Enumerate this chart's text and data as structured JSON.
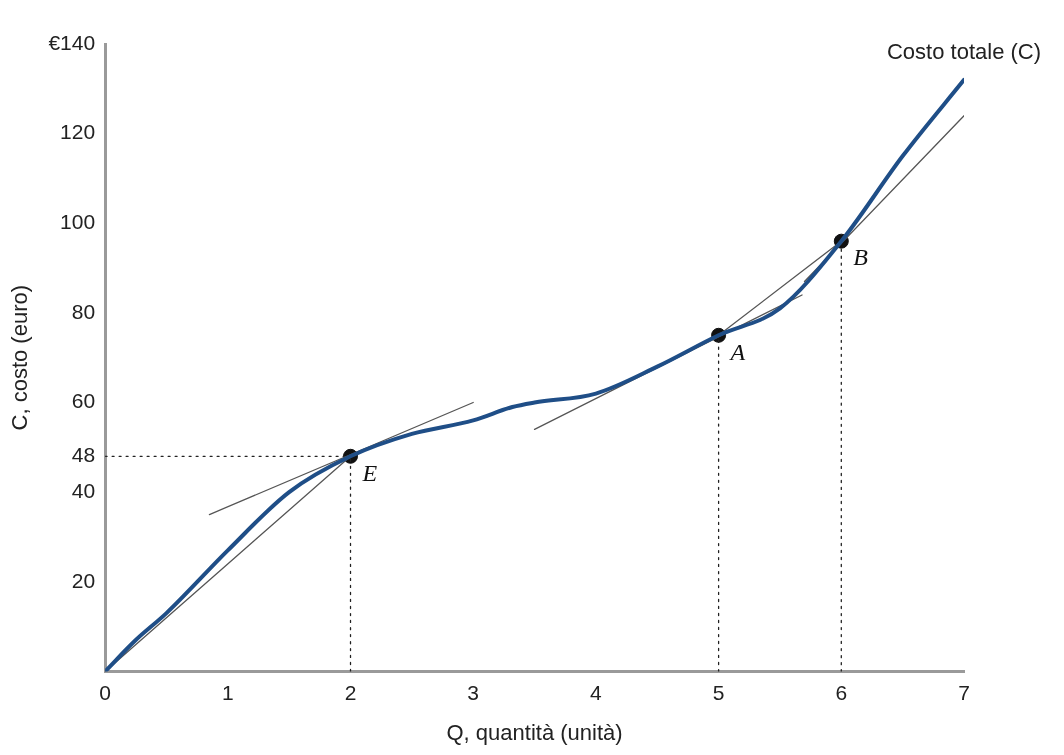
{
  "chart_data": {
    "type": "line",
    "xlabel": "Q, quantità (unità)",
    "ylabel": "C, costo (euro)",
    "xlim": [
      0,
      7
    ],
    "xticks": [
      0,
      1,
      2,
      3,
      4,
      5,
      6,
      7
    ],
    "ylim": [
      0,
      140
    ],
    "yticks": [
      20,
      40,
      48,
      60,
      80,
      100,
      120,
      {
        "value": 140,
        "label": "€140"
      }
    ],
    "grid": false,
    "legend": false,
    "series": [
      {
        "name": "Costo totale (C)",
        "type": "line",
        "color": "#1f4e87",
        "x": [
          0,
          0.25,
          0.5,
          1,
          1.5,
          2,
          2.5,
          3,
          3.32,
          3.5,
          4,
          4.5,
          5,
          5.5,
          6,
          6.5,
          7
        ],
        "values": [
          0,
          7,
          13,
          27,
          40,
          48,
          53,
          56,
          59,
          60,
          62,
          68,
          75,
          81,
          96,
          115,
          132
        ]
      },
      {
        "type": "line",
        "color": "#555555",
        "x": [
          0,
          2
        ],
        "values": [
          0,
          48
        ]
      },
      {
        "type": "line",
        "color": "#555555",
        "x": [
          0.85,
          3
        ],
        "values": [
          35,
          60
        ]
      },
      {
        "type": "line",
        "color": "#555555",
        "x": [
          3.5,
          5.68
        ],
        "values": [
          54,
          84
        ]
      },
      {
        "type": "line",
        "color": "#555555",
        "x": [
          5,
          6
        ],
        "values": [
          75,
          96
        ]
      },
      {
        "type": "line",
        "color": "#555555",
        "x": [
          5.7,
          7
        ],
        "values": [
          87,
          124
        ]
      },
      {
        "type": "line",
        "color": "#222222",
        "line_style": "dotted",
        "x": [
          0,
          2
        ],
        "values": [
          48,
          48
        ]
      },
      {
        "type": "line",
        "color": "#222222",
        "line_style": "dotted",
        "x": [
          2,
          2
        ],
        "values": [
          0,
          48
        ]
      },
      {
        "type": "line",
        "color": "#222222",
        "line_style": "dotted",
        "x": [
          5,
          5
        ],
        "values": [
          0,
          75
        ]
      },
      {
        "type": "line",
        "color": "#222222",
        "line_style": "dotted",
        "x": [
          6,
          6
        ],
        "values": [
          0,
          96
        ]
      },
      {
        "type": "scatter",
        "color": "#111111",
        "marker": "circle",
        "x": [
          2,
          5,
          6
        ],
        "values": [
          48,
          75,
          96
        ]
      }
    ],
    "annotations": [
      {
        "text": "E",
        "x": 2,
        "y": 48
      },
      {
        "text": "A",
        "x": 5,
        "y": 75
      },
      {
        "text": "B",
        "x": 6,
        "y": 96
      }
    ]
  }
}
